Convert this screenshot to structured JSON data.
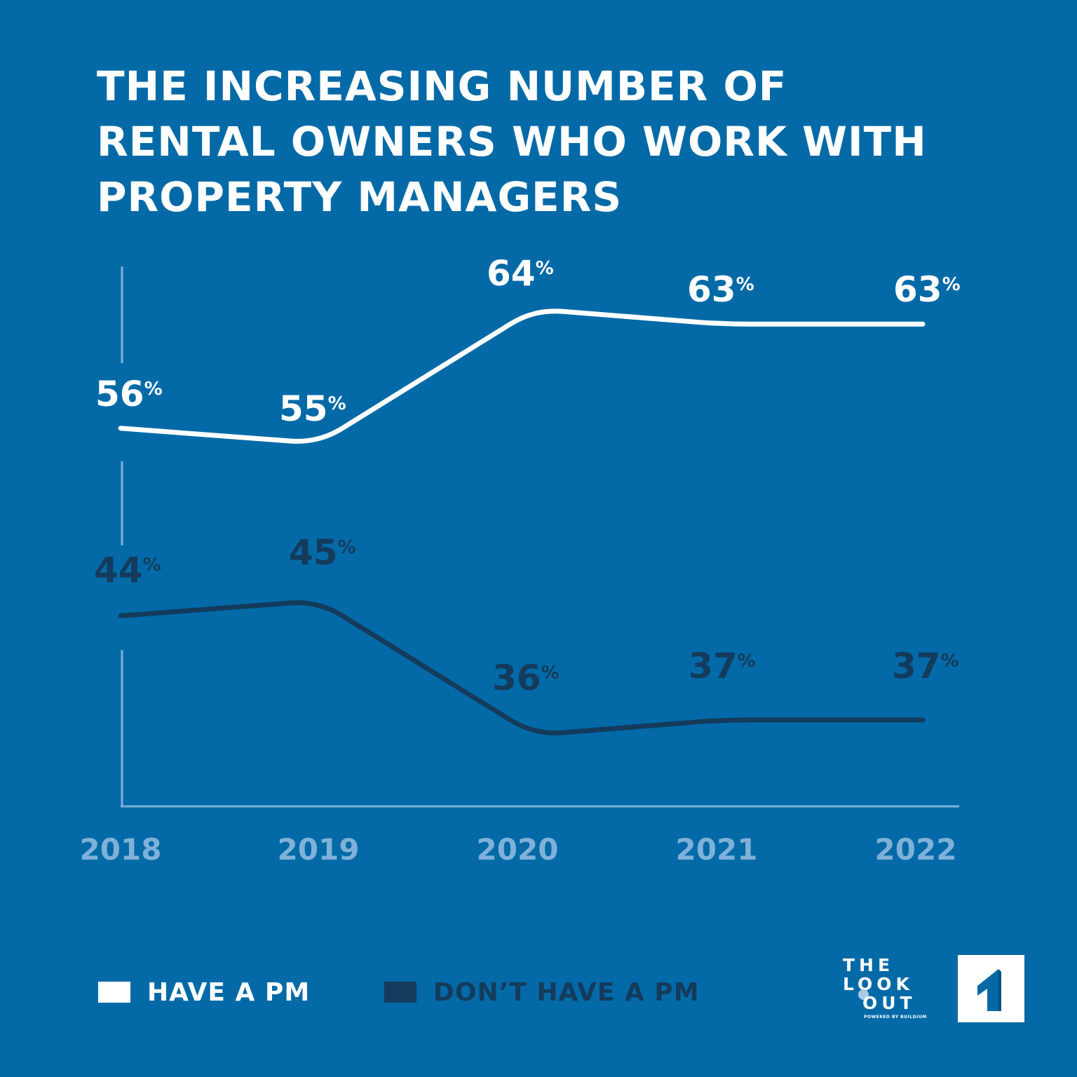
{
  "title_lines": [
    "THE INCREASING NUMBER OF",
    "RENTAL OWNERS WHO WORK WITH",
    "PROPERTY MANAGERS"
  ],
  "chart_data": {
    "type": "line",
    "title": "THE INCREASING NUMBER OF RENTAL OWNERS WHO WORK WITH PROPERTY MANAGERS",
    "categories": [
      "2018",
      "2019",
      "2020",
      "2021",
      "2022"
    ],
    "x": [
      "2018",
      "2019",
      "2020",
      "2021",
      "2022"
    ],
    "series": [
      {
        "name": "HAVE A PM",
        "values": [
          56,
          55,
          64,
          63,
          63
        ],
        "color": "#ffffff"
      },
      {
        "name": "DON’T HAVE A PM",
        "values": [
          44,
          45,
          36,
          37,
          37
        ],
        "color": "#143b5c"
      }
    ],
    "value_suffix": "%",
    "xlabel": "",
    "ylabel": "",
    "grid": false,
    "legend_position": "bottom-left"
  },
  "legend": {
    "have_pm": "HAVE A PM",
    "dont_have_pm": "DON’T HAVE A PM"
  },
  "logos": {
    "lookout_line1": "THE",
    "lookout_line2": "LOOK",
    "lookout_line3": "OUT",
    "lookout_sub": "POWERED BY BUILDIUM"
  },
  "colors": {
    "background": "#036aa7",
    "have_pm": "#ffffff",
    "dont_have_pm": "#143b5c",
    "axis": "#7fb1d8"
  }
}
